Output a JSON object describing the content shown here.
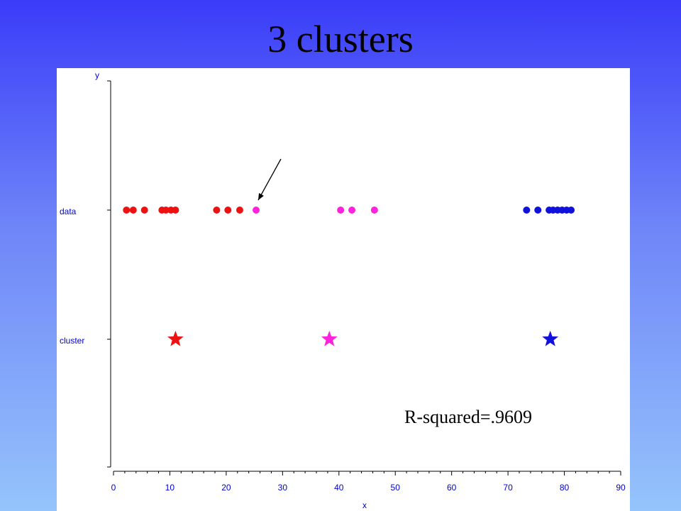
{
  "slide": {
    "title": "3 clusters"
  },
  "chart_data": {
    "type": "scatter",
    "title": "3 clusters",
    "xlabel": "x",
    "ylabel": "y",
    "xlim": [
      0,
      90
    ],
    "x_ticks": [
      0,
      10,
      20,
      30,
      40,
      50,
      60,
      70,
      80,
      90
    ],
    "y_categories": [
      "data",
      "cluster"
    ],
    "grid": false,
    "legend": "none",
    "series": [
      {
        "color": "#ee1111",
        "marker": "circle",
        "row": "data",
        "x": [
          2.3,
          3.5,
          5.5,
          8.6,
          9.3,
          10.2,
          11.0,
          18.3,
          20.3,
          22.4
        ]
      },
      {
        "color": "#ff22dd",
        "marker": "circle",
        "row": "data",
        "x": [
          25.3,
          40.3,
          42.3,
          46.3
        ]
      },
      {
        "color": "#1111dd",
        "marker": "circle",
        "row": "data",
        "x": [
          73.3,
          75.3,
          77.3,
          78.0,
          78.8,
          79.6,
          80.4,
          81.2
        ]
      },
      {
        "color": "#ee1111",
        "marker": "star",
        "row": "cluster",
        "x": [
          11.0
        ]
      },
      {
        "color": "#ff22dd",
        "marker": "star",
        "row": "cluster",
        "x": [
          38.3
        ]
      },
      {
        "color": "#1111dd",
        "marker": "star",
        "row": "cluster",
        "x": [
          77.5
        ]
      }
    ],
    "annotations": [
      {
        "type": "text",
        "text": "R-squared=.9609"
      },
      {
        "type": "arrow",
        "target_x": 25.3,
        "target_row": "data"
      }
    ]
  }
}
